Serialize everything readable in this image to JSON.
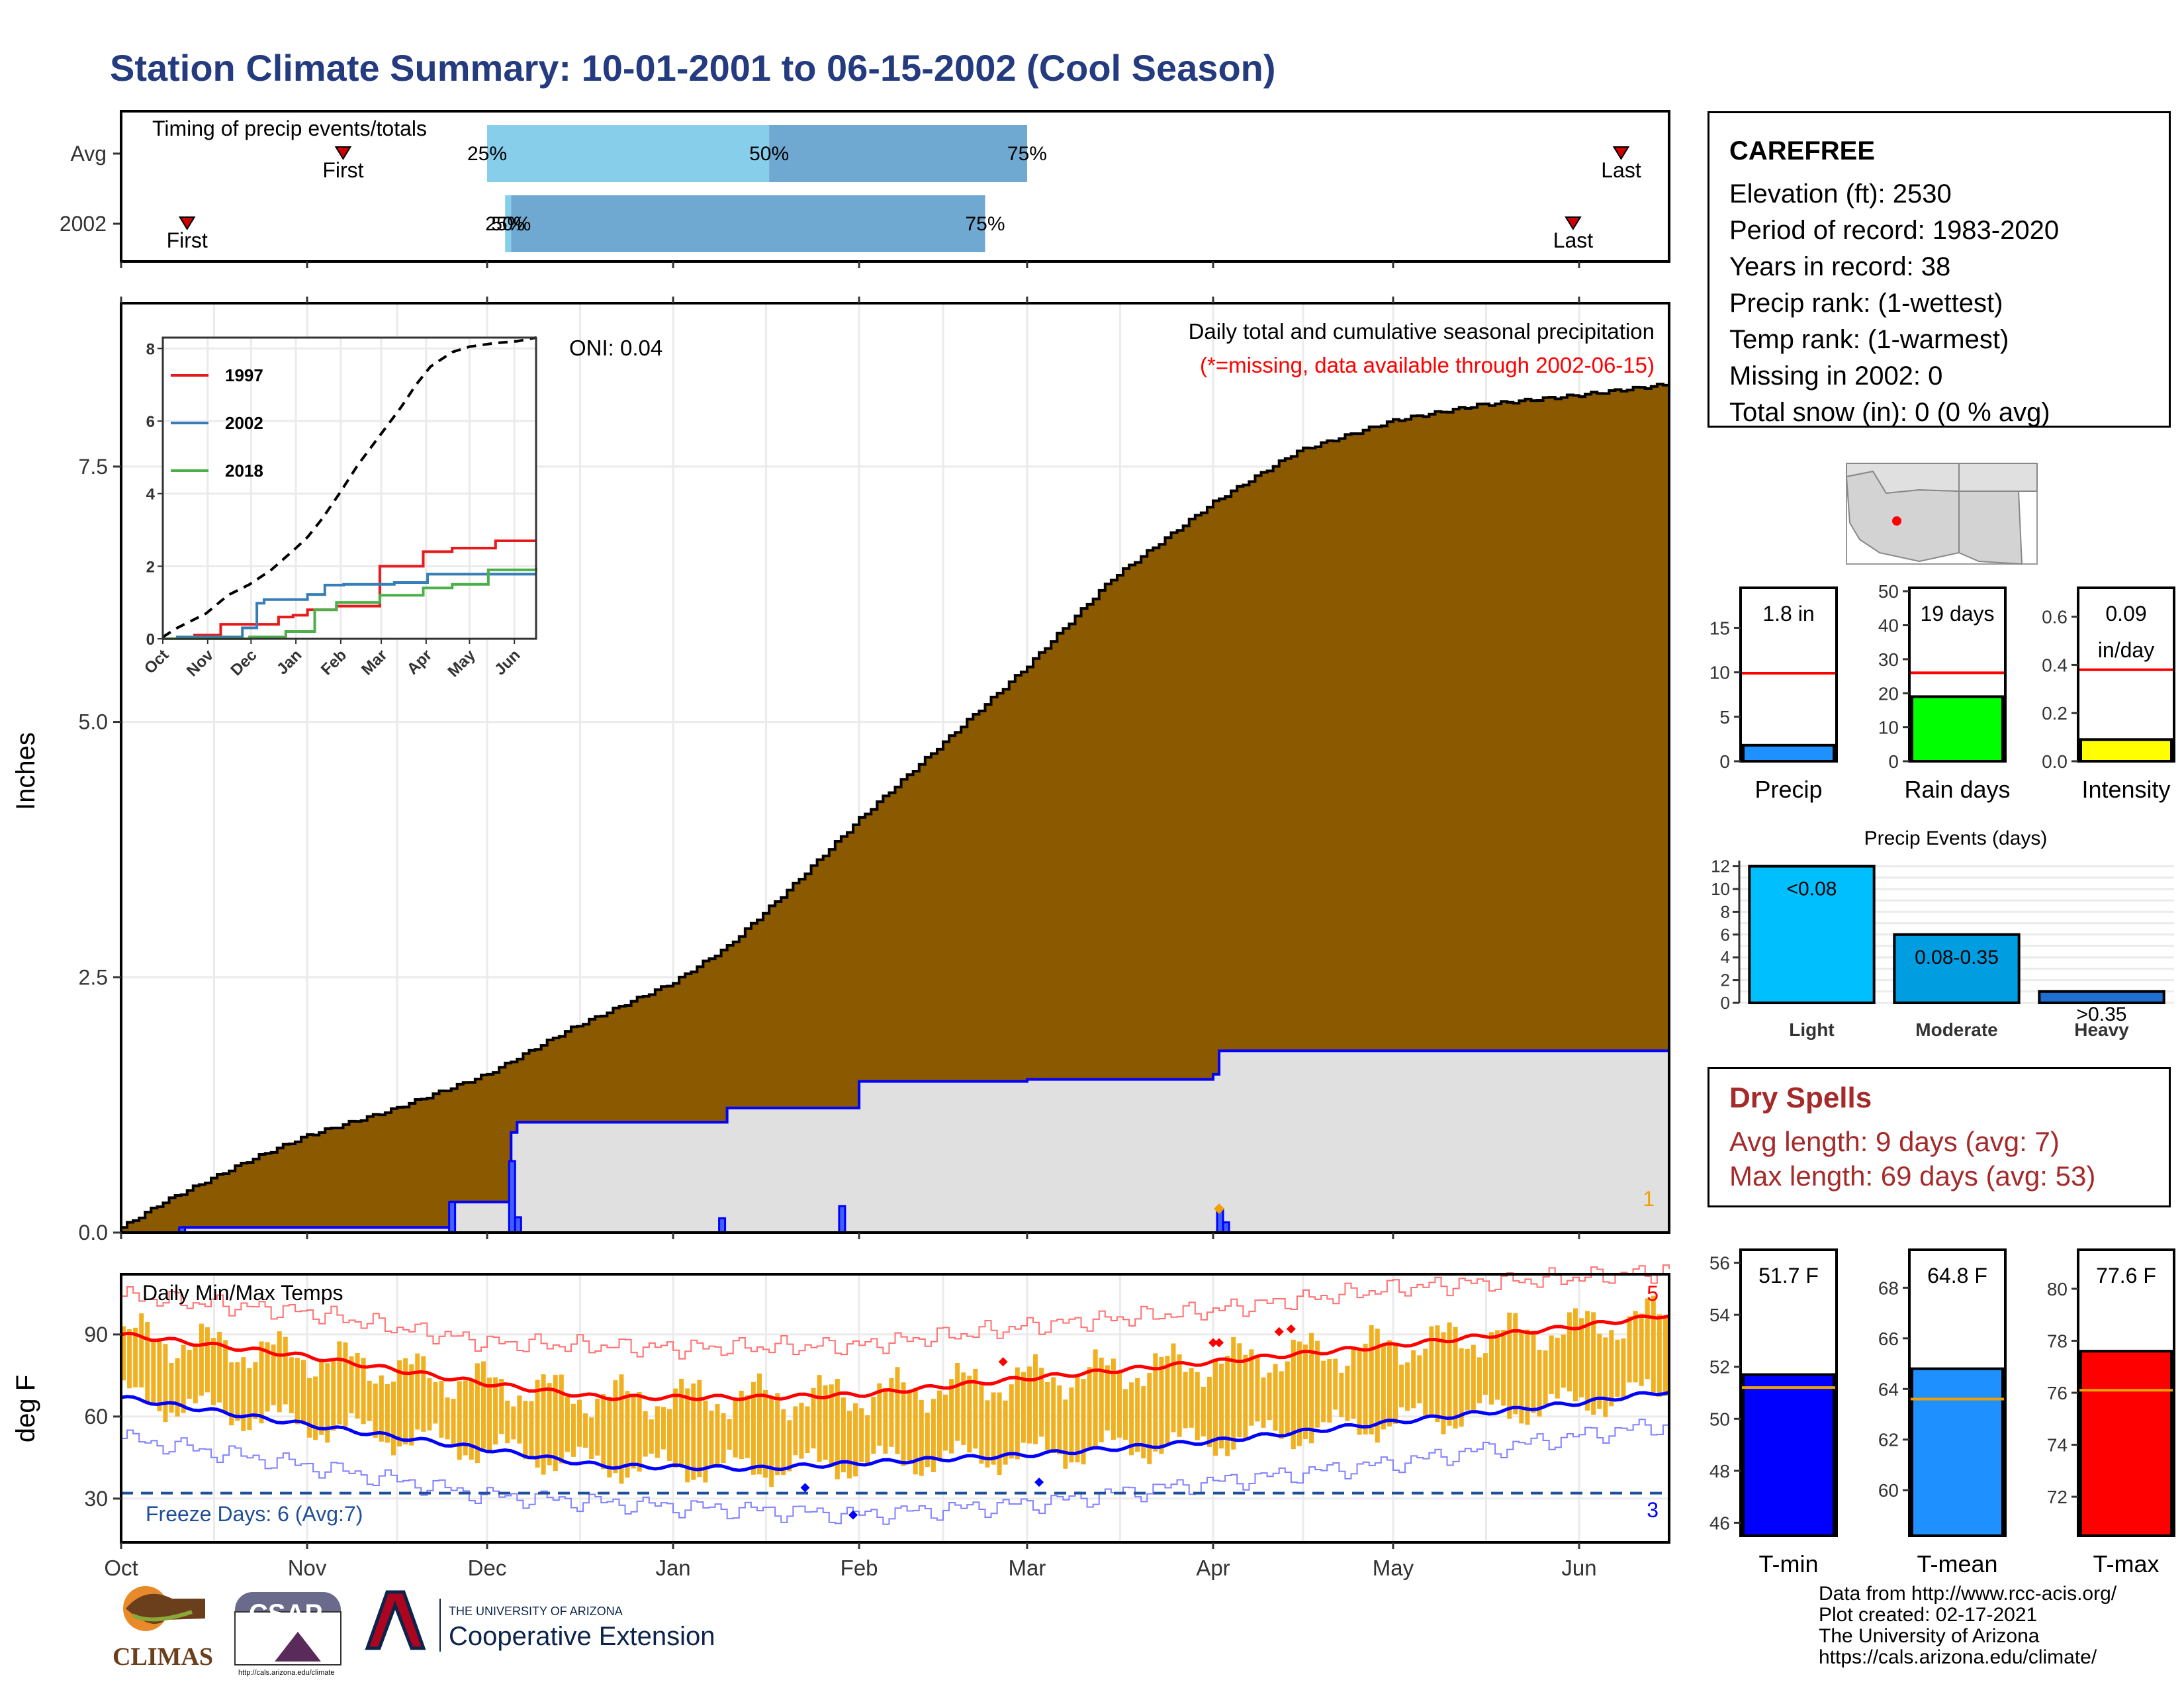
{
  "title": "Station Climate Summary: 10-01-2001 to 06-15-2002 (Cool Season)",
  "station": {
    "name": "CAREFREE",
    "lines": [
      "Elevation (ft): 2530",
      "Period of record: 1983-2020",
      "Years in record: 38",
      "Precip rank:  (1-wettest)",
      "Temp rank:  (1-warmest)",
      "Missing in 2002: 0",
      "Total snow (in): 0 (0 % avg)"
    ]
  },
  "dry_spells": {
    "title": "Dry Spells",
    "avg": "Avg length: 9 days (avg: 7)",
    "max": "Max length: 69 days (avg: 53)"
  },
  "footer": [
    "Data from http://www.rcc-acis.org/",
    "Plot created: 02-17-2021",
    "The University of Arizona",
    "https://cals.arizona.edu/climate/"
  ],
  "logos": {
    "climas": "CLIMAS",
    "csap": "CSAP",
    "csap_url": "http://cals.arizona.edu/climate",
    "ua_small": "THE UNIVERSITY OF ARIZONA",
    "ua_big": "Cooperative Extension"
  },
  "colors": {
    "brown": "#8b5a00",
    "gray": "#e0e0e0",
    "blue": "#0000ff",
    "red": "#ff0000",
    "orange": "#f0b020",
    "light_blue": "#87ceeb",
    "mid_blue": "#6fa8d0",
    "title_blue": "#243b7f",
    "dry_red": "#a52a2a"
  },
  "chart_data": [
    {
      "id": "timing",
      "type": "bar",
      "title": "Timing of precip events/totals",
      "rows": [
        {
          "label": "Avg",
          "first": "11-07",
          "p25": "12-01",
          "p50": "01-17",
          "p75": "03-01",
          "last": "06-08",
          "first_label": "First",
          "last_label": "Last"
        },
        {
          "label": "2002",
          "first": "10-12",
          "p25": "12-04",
          "p50": "12-05",
          "p75": "02-22",
          "last": "05-31",
          "first_label": "First",
          "last_label": "Last"
        }
      ],
      "pct_labels": [
        "25%",
        "50%",
        "75%"
      ]
    },
    {
      "id": "precip",
      "type": "area",
      "title": "Daily total and cumulative seasonal precipitation",
      "subtitle": "(*=missing, data available through 2002-06-15)",
      "oni": "ONI: 0.04",
      "ylabel": "Inches",
      "ylim": [
        0,
        9.1
      ],
      "yticks": [
        "0.0",
        "2.5",
        "5.0",
        "7.5"
      ],
      "annotation": "1",
      "avg_cumulative": {
        "x": [
          "10-01",
          "10-08",
          "10-15",
          "10-22",
          "11-01",
          "11-15",
          "12-01",
          "12-15",
          "01-01",
          "01-10",
          "01-20",
          "02-01",
          "02-15",
          "03-01",
          "03-15",
          "04-01",
          "04-15",
          "05-01",
          "05-15",
          "06-01",
          "06-15"
        ],
        "y": [
          0.05,
          0.3,
          0.5,
          0.7,
          0.95,
          1.2,
          1.55,
          2.0,
          2.45,
          2.8,
          3.35,
          4.05,
          4.8,
          5.55,
          6.4,
          7.15,
          7.65,
          7.95,
          8.1,
          8.2,
          8.3
        ]
      },
      "obs_cumulative": {
        "x": [
          "10-01",
          "10-11",
          "11-25",
          "12-01",
          "12-05",
          "12-06",
          "01-01",
          "01-10",
          "02-01",
          "03-01",
          "04-01",
          "04-02",
          "06-15"
        ],
        "y": [
          0.0,
          0.05,
          0.3,
          0.3,
          0.98,
          1.08,
          1.08,
          1.22,
          1.48,
          1.5,
          1.55,
          1.78,
          1.78
        ]
      },
      "daily_bars": [
        {
          "date": "10-11",
          "value": 0.05
        },
        {
          "date": "11-25",
          "value": 0.3
        },
        {
          "date": "12-05",
          "value": 0.7
        },
        {
          "date": "12-06",
          "value": 0.15
        },
        {
          "date": "01-09",
          "value": 0.14
        },
        {
          "date": "01-29",
          "value": 0.26
        },
        {
          "date": "04-02",
          "value": 0.23
        },
        {
          "date": "04-03",
          "value": 0.1
        }
      ]
    },
    {
      "id": "inset",
      "type": "line",
      "xticks": [
        "Oct",
        "Nov",
        "Dec",
        "Jan",
        "Feb",
        "Mar",
        "Apr",
        "May",
        "Jun"
      ],
      "yticks": [
        "0",
        "2",
        "4",
        "6",
        "8"
      ],
      "ylim": [
        0,
        8.3
      ],
      "series": [
        {
          "name": "1997",
          "color": "#e41a1c",
          "x": [
            0,
            22,
            40,
            60,
            80,
            90,
            100,
            120,
            150,
            180,
            200,
            212,
            230,
            240,
            258
          ],
          "y": [
            0,
            0.1,
            0.4,
            0.4,
            0.6,
            0.65,
            0.8,
            0.9,
            2.0,
            2.4,
            2.5,
            2.5,
            2.7,
            2.7,
            2.7
          ]
        },
        {
          "name": "2002",
          "color": "#377eb8",
          "x": [
            0,
            10,
            55,
            65,
            70,
            100,
            112,
            125,
            160,
            183,
            188,
            258
          ],
          "y": [
            0,
            0.05,
            0.3,
            0.98,
            1.08,
            1.22,
            1.48,
            1.5,
            1.55,
            1.78,
            1.78,
            1.78
          ]
        },
        {
          "name": "2018",
          "color": "#4daf4a",
          "x": [
            0,
            30,
            60,
            85,
            105,
            120,
            150,
            180,
            200,
            225,
            258
          ],
          "y": [
            0,
            0,
            0.05,
            0.2,
            0.8,
            1.0,
            1.2,
            1.4,
            1.5,
            1.9,
            1.95
          ]
        },
        {
          "name": "",
          "color": "#000000",
          "dash": true,
          "x": [
            0,
            10,
            30,
            45,
            60,
            75,
            92,
            100,
            110,
            122,
            135,
            150,
            165,
            175,
            185,
            200,
            212,
            230,
            245,
            258
          ],
          "y": [
            0.05,
            0.3,
            0.7,
            1.2,
            1.5,
            1.9,
            2.5,
            2.8,
            3.3,
            4.0,
            4.8,
            5.6,
            6.4,
            7.0,
            7.5,
            7.9,
            8.05,
            8.15,
            8.2,
            8.3
          ]
        }
      ]
    },
    {
      "id": "temps",
      "type": "bar",
      "title": "Daily Min/Max Temps",
      "ylabel": "deg F",
      "ylim": [
        14,
        112
      ],
      "yticks": [
        "30",
        "60",
        "90"
      ],
      "freeze_label": "Freeze Days: 6 (Avg:7)",
      "freeze_line": 32,
      "count_hot": "5",
      "count_cold": "3",
      "xticks": [
        "Oct",
        "Nov",
        "Dec",
        "Jan",
        "Feb",
        "Mar",
        "Apr",
        "May",
        "Jun"
      ],
      "avg_max": {
        "x": [
          "10-01",
          "11-01",
          "12-01",
          "12-20",
          "01-15",
          "02-01",
          "03-01",
          "04-01",
          "05-01",
          "06-01",
          "06-15"
        ],
        "y": [
          90,
          82,
          72,
          67,
          67,
          68,
          74,
          80,
          86,
          93,
          97
        ]
      },
      "avg_min": {
        "x": [
          "10-01",
          "11-01",
          "12-01",
          "12-20",
          "01-15",
          "02-01",
          "03-01",
          "04-01",
          "05-01",
          "06-01",
          "06-15"
        ],
        "y": [
          67,
          57,
          48,
          42,
          41,
          43,
          46,
          51,
          58,
          65,
          69
        ]
      },
      "record_max": {
        "x": [
          "10-01",
          "11-01",
          "12-01",
          "01-01",
          "02-01",
          "03-01",
          "04-01",
          "05-01",
          "06-01",
          "06-15"
        ],
        "y": [
          104,
          98,
          87,
          85,
          86,
          93,
          99,
          107,
          111,
          113
        ]
      },
      "record_min": {
        "x": [
          "10-01",
          "11-01",
          "12-01",
          "01-01",
          "02-01",
          "03-01",
          "04-01",
          "05-01",
          "06-01",
          "06-15"
        ],
        "y": [
          52,
          42,
          31,
          27,
          24,
          28,
          36,
          43,
          53,
          57
        ]
      }
    },
    {
      "id": "gauge_precip",
      "type": "bar",
      "xlabel": "Precip",
      "value_label": "1.8 in",
      "value": 1.8,
      "avg": 9.9,
      "ylim": [
        0,
        19.5
      ],
      "yticks": [
        "0",
        "5",
        "10",
        "15"
      ],
      "ytick_values": [
        0,
        5,
        10,
        15
      ],
      "fill": "#1e90ff"
    },
    {
      "id": "gauge_raindays",
      "type": "bar",
      "xlabel": "Rain days",
      "value_label": "19 days",
      "value": 19,
      "avg": 26,
      "ylim": [
        0,
        51
      ],
      "yticks": [
        "0",
        "10",
        "20",
        "30",
        "40",
        "50"
      ],
      "ytick_values": [
        0,
        10,
        20,
        30,
        40,
        50
      ],
      "fill": "#00ff00"
    },
    {
      "id": "gauge_intensity",
      "type": "bar",
      "xlabel": "Intensity",
      "value_label": "0.09",
      "value_label2": "in/day",
      "value": 0.09,
      "avg": 0.38,
      "ylim": [
        0,
        0.72
      ],
      "yticks": [
        "0.0",
        "0.2",
        "0.4",
        "0.6"
      ],
      "ytick_values": [
        0,
        0.2,
        0.4,
        0.6
      ],
      "fill": "#ffff00"
    },
    {
      "id": "events",
      "type": "bar",
      "title": "Precip Events (days)",
      "categories": [
        "Light",
        "Moderate",
        "Heavy"
      ],
      "bar_labels": [
        "<0.08",
        "0.08-0.35",
        ">0.35"
      ],
      "values": [
        12,
        6,
        1
      ],
      "ylim": [
        0,
        12.5
      ],
      "yticks": [
        "0",
        "2",
        "4",
        "6",
        "8",
        "10",
        "12"
      ],
      "colors": [
        "#00bfff",
        "#009ee0",
        "#1e6fd0"
      ]
    },
    {
      "id": "gauge_tmin",
      "type": "bar",
      "xlabel": "T-min",
      "value_label": "51.7 F",
      "value": 51.7,
      "avg": 51.2,
      "ylim": [
        45.5,
        56.5
      ],
      "yticks": [
        "46",
        "48",
        "50",
        "52",
        "54",
        "56"
      ],
      "ytick_values": [
        46,
        48,
        50,
        52,
        54,
        56
      ],
      "fill": "#0000ff"
    },
    {
      "id": "gauge_tmean",
      "type": "bar",
      "xlabel": "T-mean",
      "value_label": "64.8 F",
      "value": 64.8,
      "avg": 63.6,
      "ylim": [
        58.2,
        69.5
      ],
      "yticks": [
        "60",
        "62",
        "64",
        "66",
        "68"
      ],
      "ytick_values": [
        60,
        62,
        64,
        66,
        68
      ],
      "fill": "#1e90ff"
    },
    {
      "id": "gauge_tmax",
      "type": "bar",
      "xlabel": "T-max",
      "value_label": "77.6 F",
      "value": 77.6,
      "avg": 76.1,
      "ylim": [
        70.5,
        81.5
      ],
      "yticks": [
        "72",
        "74",
        "76",
        "78",
        "80"
      ],
      "ytick_values": [
        72,
        74,
        76,
        78,
        80
      ],
      "fill": "#ff0000"
    }
  ]
}
